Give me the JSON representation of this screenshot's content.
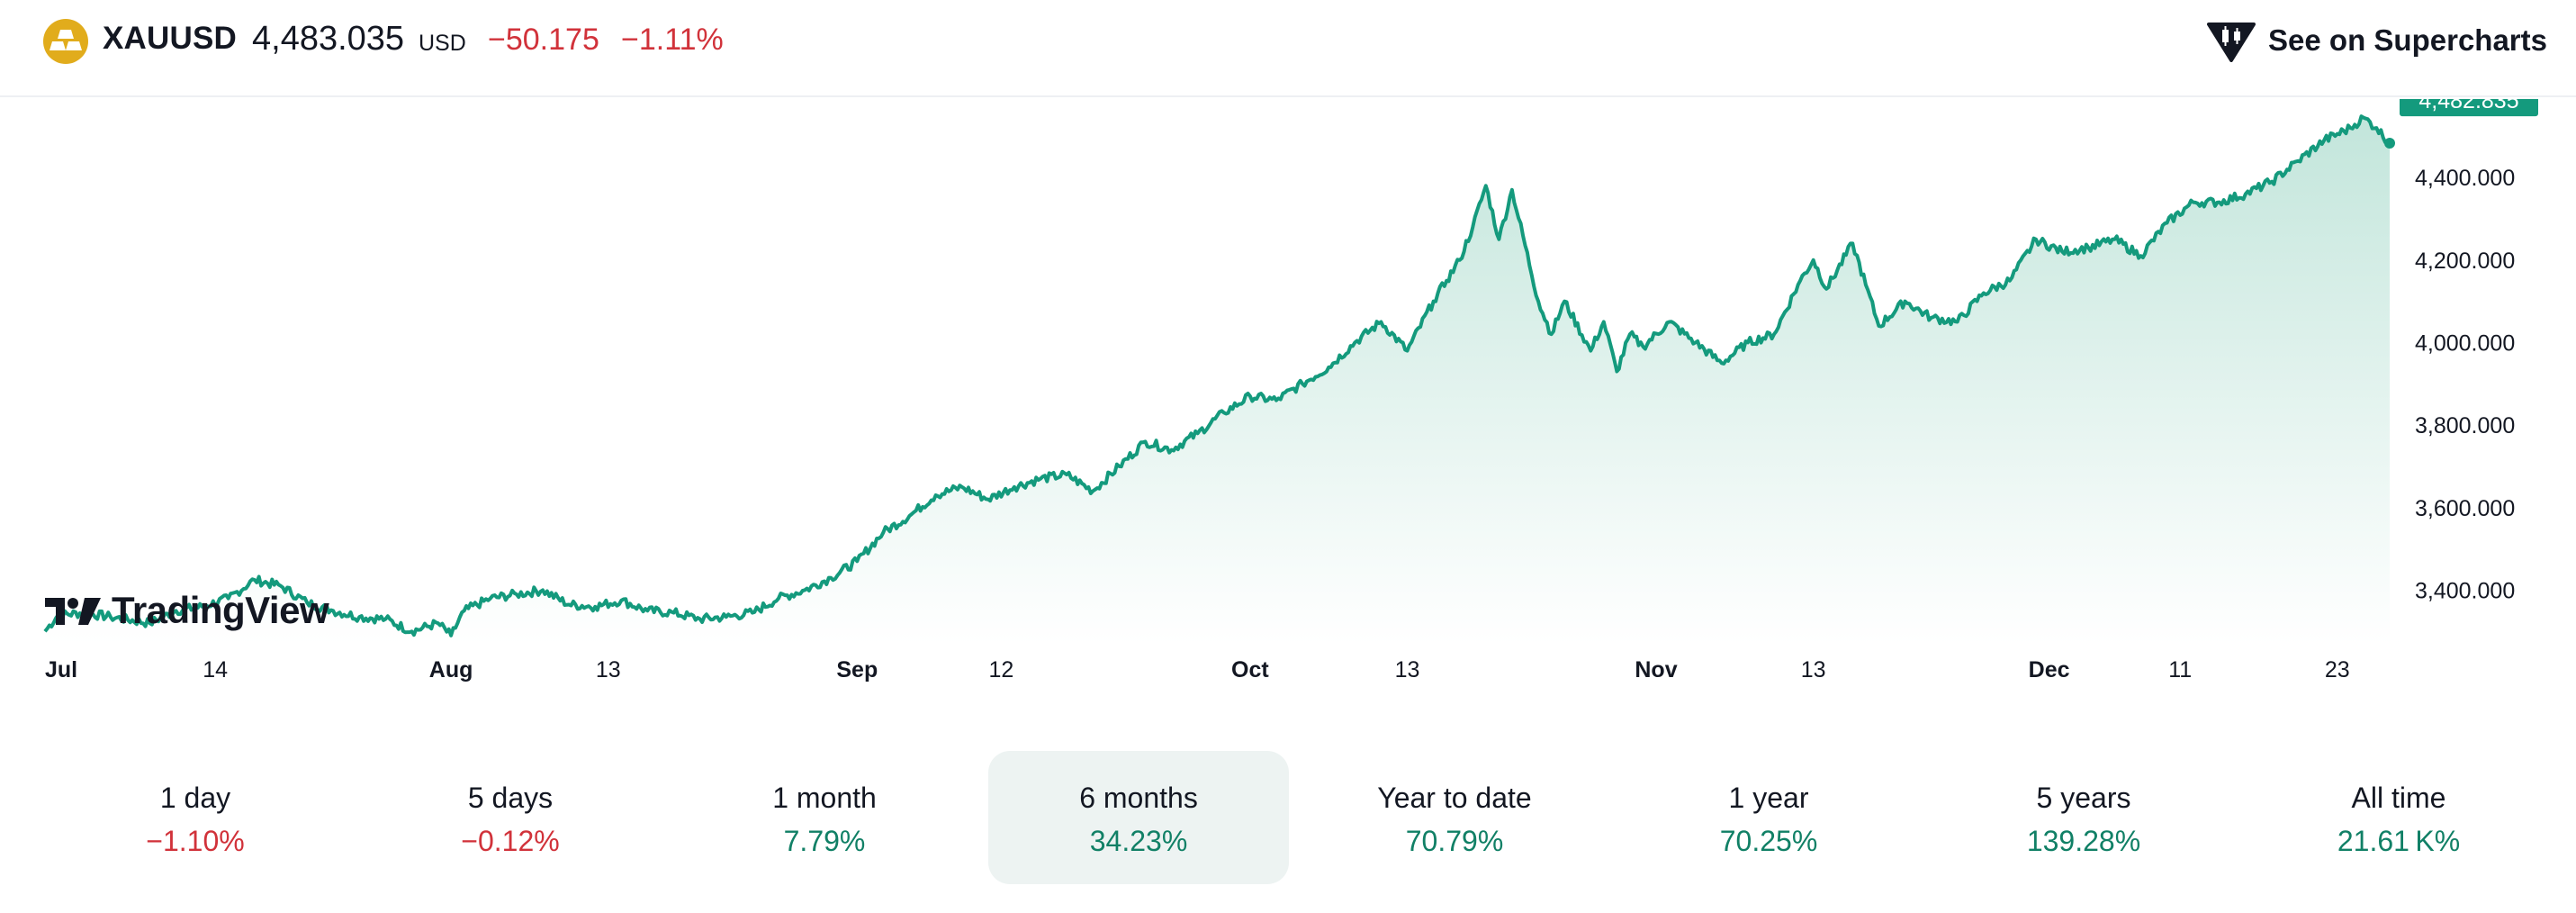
{
  "header": {
    "symbol": "XAUUSD",
    "price": "4,483.035",
    "currency": "USD",
    "change_abs": "−50.175",
    "change_pct": "−1.11%",
    "supercharts_label": "See on Supercharts",
    "symbol_icon": "gold-bars-icon",
    "supercharts_icon": "supercharts-icon"
  },
  "logo": {
    "text": "TradingView",
    "icon": "tradingview-logo-icon"
  },
  "colors": {
    "line": "#149a7d",
    "fill_top": "#bfe4d9",
    "negative": "#d1323a",
    "positive": "#118066",
    "price_tag": "#149a7d",
    "brand_gold": "#e1ac1c"
  },
  "chart_data": {
    "type": "area",
    "title": "XAUUSD",
    "xlabel": "",
    "ylabel": "",
    "y_unit": "USD",
    "ylim": [
      3270,
      4590
    ],
    "y_ticks": [
      "3,400.000",
      "3,600.000",
      "3,800.000",
      "4,000.000",
      "4,200.000",
      "4,400.000"
    ],
    "y_tick_values": [
      3400,
      3600,
      3800,
      4000,
      4200,
      4400
    ],
    "x_range": [
      0,
      179
    ],
    "x_ticks": [
      {
        "label": "Jul",
        "day": 0,
        "bold": true
      },
      {
        "label": "14",
        "day": 13,
        "bold": false
      },
      {
        "label": "Aug",
        "day": 31,
        "bold": true
      },
      {
        "label": "13",
        "day": 43,
        "bold": false
      },
      {
        "label": "Sep",
        "day": 62,
        "bold": true
      },
      {
        "label": "12",
        "day": 73,
        "bold": false
      },
      {
        "label": "Oct",
        "day": 92,
        "bold": true
      },
      {
        "label": "13",
        "day": 104,
        "bold": false
      },
      {
        "label": "Nov",
        "day": 123,
        "bold": true
      },
      {
        "label": "13",
        "day": 135,
        "bold": false
      },
      {
        "label": "Dec",
        "day": 153,
        "bold": true
      },
      {
        "label": "11",
        "day": 163,
        "bold": false
      },
      {
        "label": "23",
        "day": 175,
        "bold": false
      }
    ],
    "last_price_label": "4,482.835",
    "last_price": 4482.835,
    "series": [
      {
        "name": "XAUUSD",
        "x": [
          0,
          1,
          3,
          5,
          8,
          10,
          12,
          14,
          16,
          18,
          20,
          22,
          24,
          26,
          28,
          30,
          31,
          32,
          34,
          36,
          38,
          40,
          42,
          44,
          46,
          48,
          50,
          52,
          54,
          56,
          58,
          60,
          62,
          64,
          66,
          68,
          70,
          72,
          74,
          76,
          78,
          80,
          82,
          84,
          86,
          88,
          90,
          92,
          94,
          96,
          98,
          100,
          102,
          104,
          106,
          107,
          108,
          109,
          110,
          111,
          112,
          114,
          115,
          116,
          118,
          119,
          120,
          121,
          122,
          124,
          126,
          128,
          130,
          132,
          134,
          135,
          136,
          138,
          139,
          140,
          142,
          144,
          146,
          148,
          150,
          152,
          154,
          156,
          158,
          160,
          162,
          164,
          166,
          168,
          170,
          172,
          174,
          176,
          177,
          178,
          179
        ],
        "values": [
          3300,
          3340,
          3345,
          3335,
          3320,
          3350,
          3360,
          3380,
          3425,
          3410,
          3370,
          3350,
          3335,
          3330,
          3300,
          3320,
          3290,
          3350,
          3380,
          3390,
          3400,
          3365,
          3360,
          3375,
          3350,
          3345,
          3330,
          3335,
          3345,
          3380,
          3400,
          3430,
          3470,
          3540,
          3580,
          3630,
          3650,
          3620,
          3650,
          3670,
          3680,
          3640,
          3700,
          3760,
          3740,
          3780,
          3830,
          3870,
          3860,
          3900,
          3940,
          4000,
          4050,
          3980,
          4100,
          4150,
          4200,
          4280,
          4380,
          4250,
          4370,
          4100,
          4020,
          4100,
          3980,
          4050,
          3930,
          4020,
          3990,
          4050,
          4000,
          3950,
          4000,
          4020,
          4150,
          4200,
          4130,
          4240,
          4140,
          4040,
          4100,
          4060,
          4050,
          4120,
          4150,
          4250,
          4220,
          4230,
          4250,
          4210,
          4290,
          4340,
          4340,
          4360,
          4390,
          4440,
          4490,
          4520,
          4545,
          4520,
          4483
        ]
      }
    ]
  },
  "periods": [
    {
      "label": "1 day",
      "value": "−1.10%",
      "trend": "neg"
    },
    {
      "label": "5 days",
      "value": "−0.12%",
      "trend": "neg"
    },
    {
      "label": "1 month",
      "value": "7.79%",
      "trend": "pos"
    },
    {
      "label": "6 months",
      "value": "34.23%",
      "trend": "pos",
      "active": true
    },
    {
      "label": "Year to date",
      "value": "70.79%",
      "trend": "pos"
    },
    {
      "label": "1 year",
      "value": "70.25%",
      "trend": "pos"
    },
    {
      "label": "5 years",
      "value": "139.28%",
      "trend": "pos"
    },
    {
      "label": "All time",
      "value": "21.61 K%",
      "trend": "pos"
    }
  ]
}
